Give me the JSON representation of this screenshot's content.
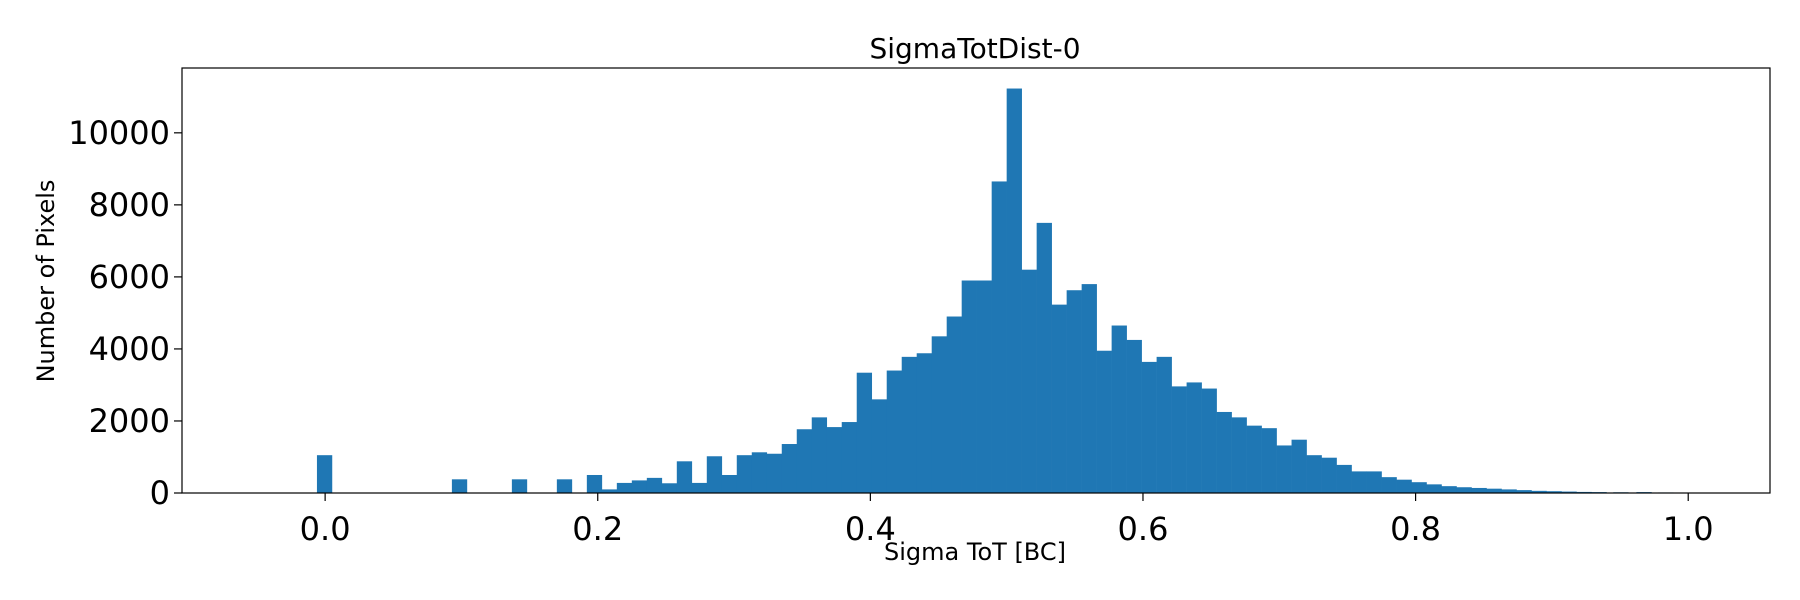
{
  "chart_data": {
    "type": "bar",
    "title": "SigmaTotDist-0",
    "xlabel": "Sigma ToT [BC]",
    "ylabel": "Number of Pixels",
    "xlim": [
      -0.105,
      1.06
    ],
    "ylim": [
      0,
      11800
    ],
    "bar_color": "#1f77b4",
    "bin_width": 0.011,
    "x_ticks": [
      {
        "value": 0.0,
        "label": "0.0"
      },
      {
        "value": 0.2,
        "label": "0.2"
      },
      {
        "value": 0.4,
        "label": "0.4"
      },
      {
        "value": 0.6,
        "label": "0.6"
      },
      {
        "value": 0.8,
        "label": "0.8"
      },
      {
        "value": 1.0,
        "label": "1.0"
      }
    ],
    "y_ticks": [
      {
        "value": 0,
        "label": "0"
      },
      {
        "value": 2000,
        "label": "2000"
      },
      {
        "value": 4000,
        "label": "4000"
      },
      {
        "value": 6000,
        "label": "6000"
      },
      {
        "value": 8000,
        "label": "8000"
      },
      {
        "value": 10000,
        "label": "10000"
      }
    ],
    "bins_start": [
      -0.006,
      0.093,
      0.137,
      0.17,
      0.192,
      0.203,
      0.214,
      0.225,
      0.236,
      0.247,
      0.258,
      0.269,
      0.28,
      0.291,
      0.302,
      0.313,
      0.324,
      0.335,
      0.346,
      0.357,
      0.368,
      0.379,
      0.39,
      0.401,
      0.412,
      0.423,
      0.434,
      0.445,
      0.456,
      0.467,
      0.478,
      0.489,
      0.5,
      0.511,
      0.522,
      0.533,
      0.544,
      0.555,
      0.566,
      0.577,
      0.588,
      0.599,
      0.61,
      0.621,
      0.632,
      0.643,
      0.654,
      0.665,
      0.676,
      0.687,
      0.698,
      0.709,
      0.72,
      0.731,
      0.742,
      0.753,
      0.764,
      0.775,
      0.786,
      0.797,
      0.808,
      0.819,
      0.83,
      0.841,
      0.852,
      0.863,
      0.874,
      0.885,
      0.896,
      0.907,
      0.918,
      0.929,
      0.945,
      0.962,
      0.978,
      0.995
    ],
    "values": [
      1050,
      380,
      380,
      380,
      500,
      100,
      280,
      350,
      420,
      270,
      880,
      280,
      1020,
      500,
      1050,
      1130,
      1090,
      1360,
      1770,
      2100,
      1830,
      1970,
      3340,
      2600,
      3400,
      3780,
      3880,
      4350,
      4900,
      5900,
      5900,
      8650,
      11230,
      6200,
      7500,
      5230,
      5630,
      5800,
      3950,
      4650,
      4250,
      3640,
      3780,
      2960,
      3070,
      2900,
      2250,
      2100,
      1870,
      1800,
      1320,
      1480,
      1050,
      980,
      780,
      600,
      600,
      440,
      370,
      300,
      240,
      190,
      160,
      140,
      120,
      100,
      80,
      60,
      50,
      40,
      30,
      25,
      20,
      25,
      15,
      10
    ]
  }
}
